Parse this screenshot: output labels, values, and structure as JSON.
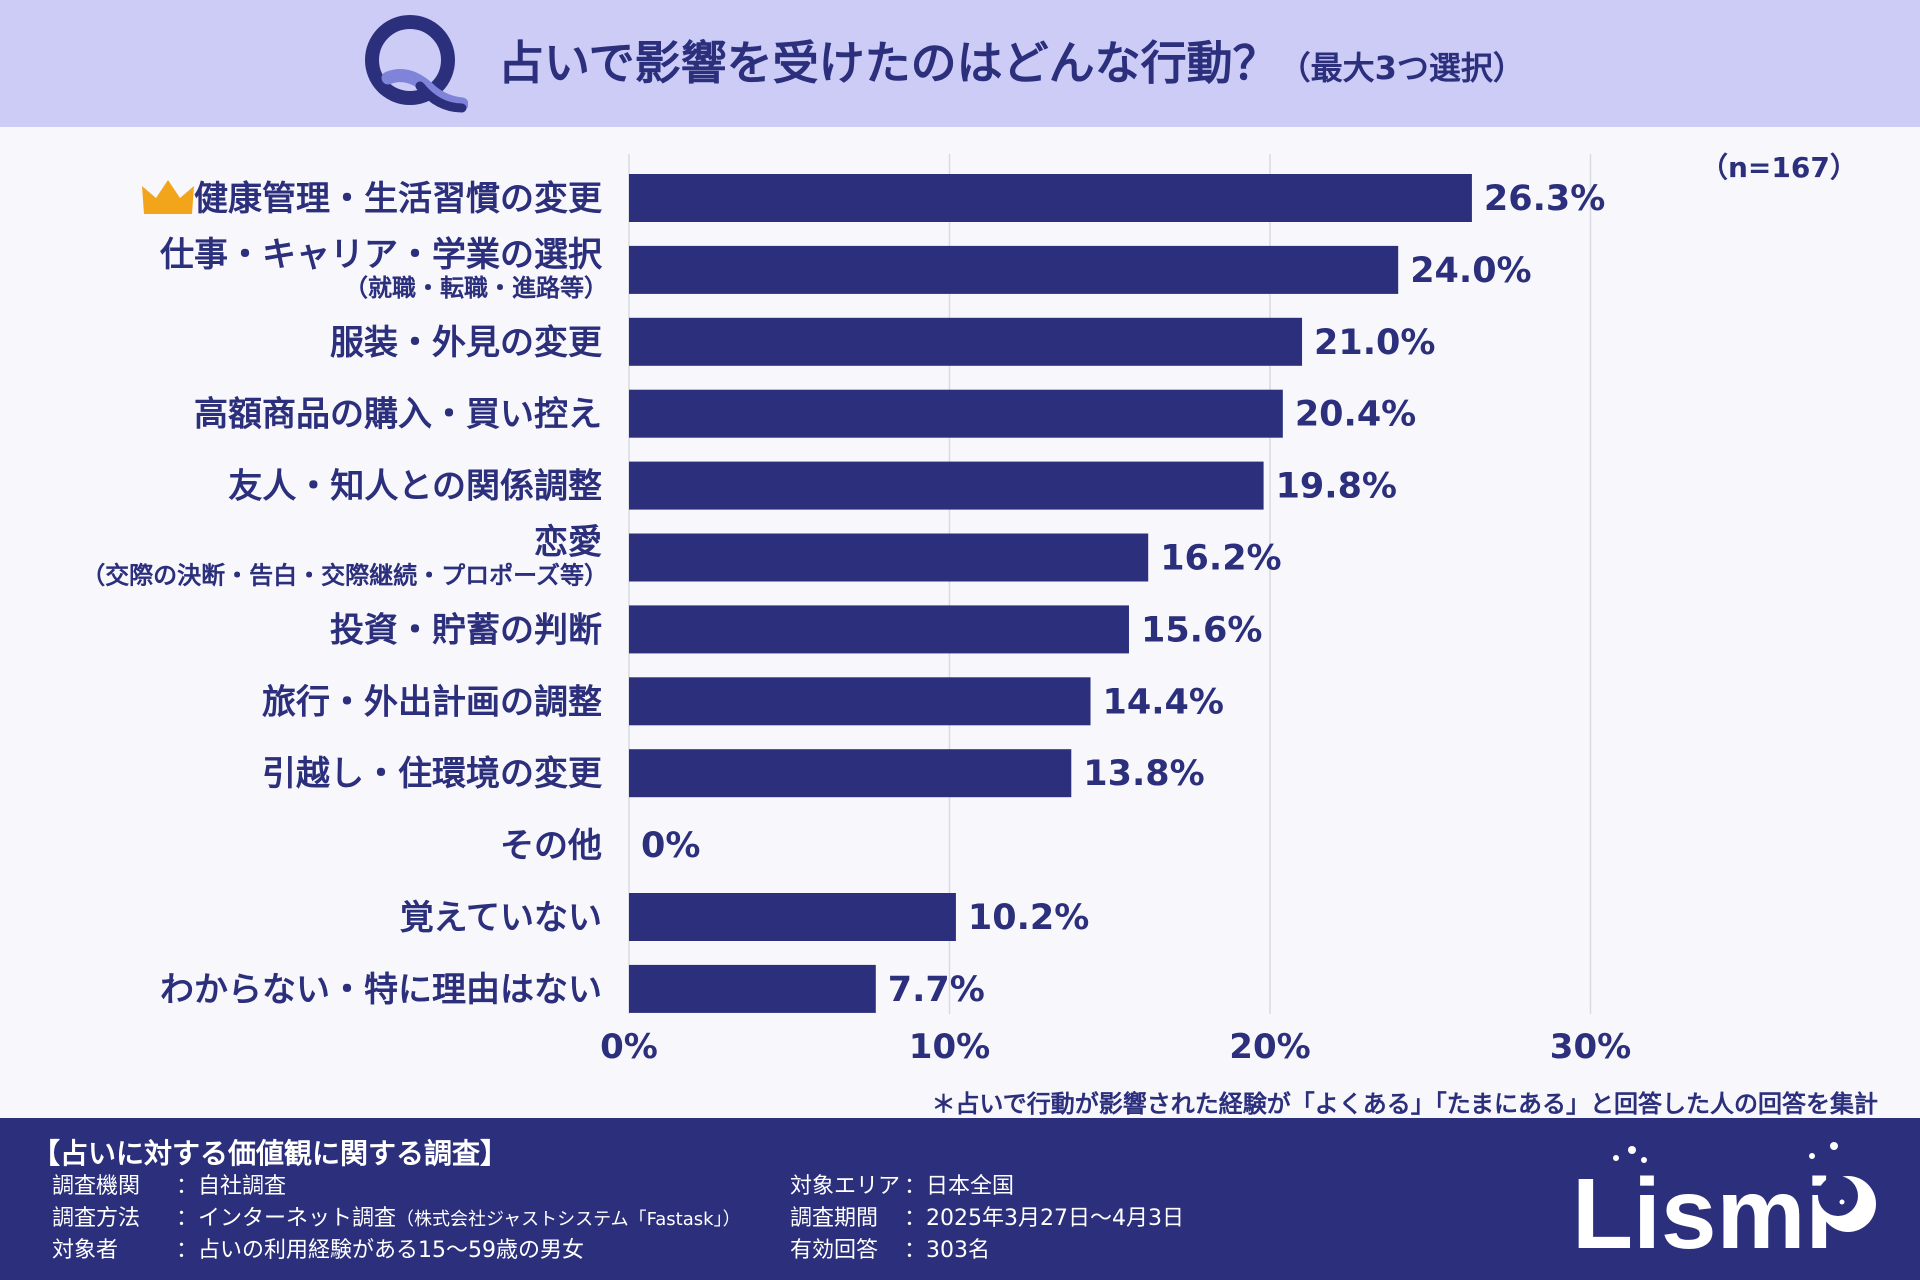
{
  "header": {
    "title_main": "占いで影響を受けたのはどんな行動？",
    "title_sub": "（最大3つ選択）"
  },
  "sample_size": "（n=167）",
  "chart_data": {
    "type": "bar",
    "orientation": "horizontal",
    "categories": [
      {
        "label": "健康管理・生活習慣の変更",
        "sub": "",
        "crown": true
      },
      {
        "label": "仕事・キャリア・学業の選択",
        "sub": "（就職・転職・進路等）"
      },
      {
        "label": "服装・外見の変更",
        "sub": ""
      },
      {
        "label": "高額商品の購入・買い控え",
        "sub": ""
      },
      {
        "label": "友人・知人との関係調整",
        "sub": ""
      },
      {
        "label": "恋愛",
        "sub": "（交際の決断・告白・交際継続・プロポーズ等）"
      },
      {
        "label": "投資・貯蓄の判断",
        "sub": ""
      },
      {
        "label": "旅行・外出計画の調整",
        "sub": ""
      },
      {
        "label": "引越し・住環境の変更",
        "sub": ""
      },
      {
        "label": "その他",
        "sub": ""
      },
      {
        "label": "覚えていない",
        "sub": ""
      },
      {
        "label": "わからない・特に理由はない",
        "sub": ""
      }
    ],
    "values": [
      26.3,
      24.0,
      21.0,
      20.4,
      19.8,
      16.2,
      15.6,
      14.4,
      13.8,
      0,
      10.2,
      7.7
    ],
    "value_labels": [
      "26.3%",
      "24.0%",
      "21.0%",
      "20.4%",
      "19.8%",
      "16.2%",
      "15.6%",
      "14.4%",
      "13.8%",
      "0%",
      "10.2%",
      "7.7%"
    ],
    "xlim": [
      0,
      30
    ],
    "ticks": [
      "0%",
      "10%",
      "20%",
      "30%"
    ],
    "tick_values": [
      0,
      10,
      20,
      30
    ],
    "grid": true,
    "color": "#2b2f7c",
    "unit": "%"
  },
  "note": "＊占いで行動が影響された経験が「よくある」「たまにある」と回答した人の回答を集計",
  "footer": {
    "title": "【占いに対する価値観に関する調査】",
    "left": [
      {
        "key": "調査機関",
        "value": "：自社調査",
        "extra": ""
      },
      {
        "key": "調査方法",
        "value": "：インターネット調査",
        "extra": "（株式会社ジャストシステム「Fastask」）"
      },
      {
        "key": "対象者",
        "value": "：占いの利用経験がある15～59歳の男女",
        "extra": ""
      }
    ],
    "right": [
      {
        "key": "対象エリア",
        "value": "：日本全国"
      },
      {
        "key": "調査期間",
        "value": "：2025年3月27日～4月3日"
      },
      {
        "key": "有効回答",
        "value": "：303名"
      }
    ],
    "brand": "Lismi"
  },
  "colors": {
    "primary": "#2b2f7c",
    "header_bg": "#ccccf7",
    "crown": "#f2a51b"
  }
}
